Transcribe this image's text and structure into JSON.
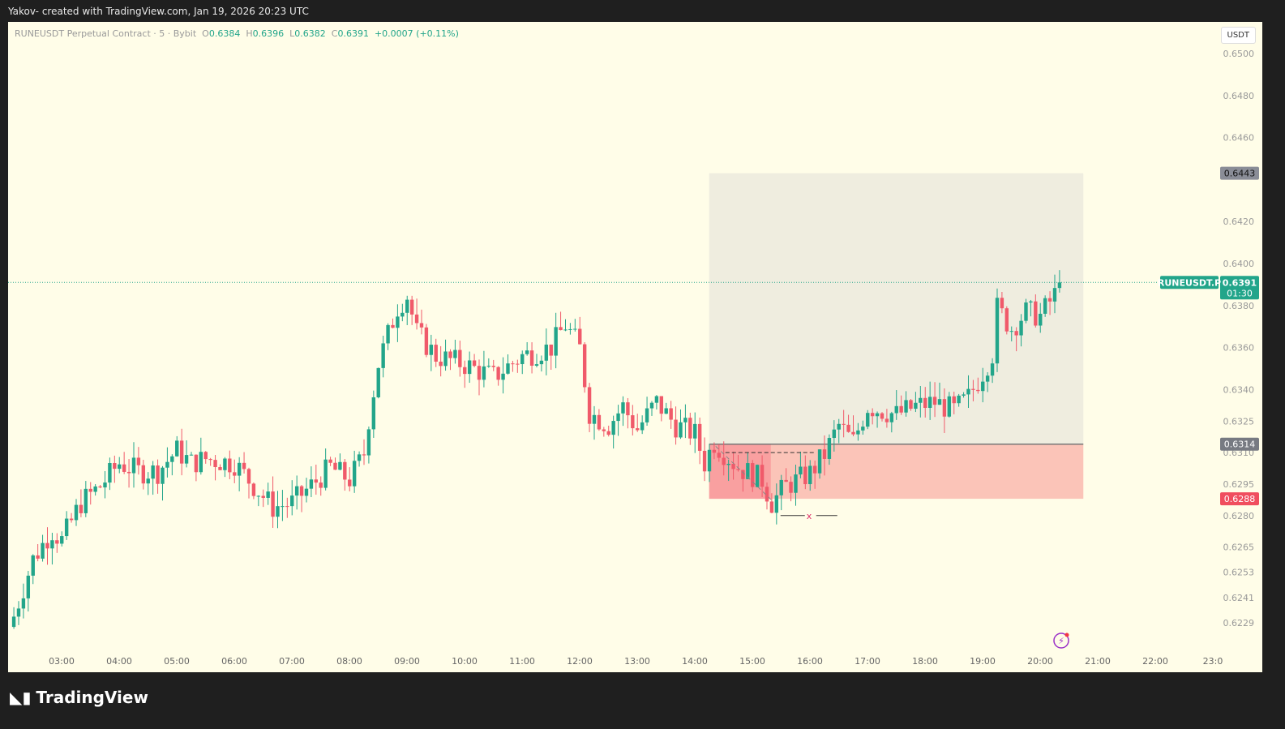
{
  "title": "Yakov- created with TradingView.com, Jan 19, 2026 20:23 UTC",
  "legend": {
    "symbol": "RUNEUSDT Perpetual Contract · 5 · Bybit",
    "o_label": "O",
    "o": "0.6384",
    "h_label": "H",
    "h": "0.6396",
    "l_label": "L",
    "l": "0.6382",
    "c_label": "C",
    "c": "0.6391",
    "change": "+0.0007 (+0.11%)"
  },
  "currency": "USDT",
  "logo": "TradingView",
  "colors": {
    "up": "#22a58a",
    "down": "#f05a6a",
    "bg": "#fffde8",
    "target": "#efeddf",
    "stop": "#fbc4b8"
  },
  "chart_data": {
    "type": "candlestick",
    "interval": "5",
    "price_ticks": [
      "0.6500",
      "0.6480",
      "0.6460",
      "0.6420",
      "0.6400",
      "0.6380",
      "0.6360",
      "0.6340",
      "0.6325",
      "0.6310",
      "0.6295",
      "0.6280",
      "0.6265",
      "0.6253",
      "0.6241",
      "0.6229"
    ],
    "time_ticks": [
      "03:00",
      "04:00",
      "05:00",
      "06:00",
      "07:00",
      "08:00",
      "09:00",
      "10:00",
      "11:00",
      "12:00",
      "13:00",
      "14:00",
      "15:00",
      "16:00",
      "17:00",
      "18:00",
      "19:00",
      "20:00",
      "21:00",
      "22:00",
      "23:0"
    ],
    "close_keypoints": [
      [
        2.17,
        0.6232
      ],
      [
        2.5,
        0.6259
      ],
      [
        2.83,
        0.6273
      ],
      [
        3.0,
        0.6268
      ],
      [
        3.33,
        0.6286
      ],
      [
        3.67,
        0.6294
      ],
      [
        4.0,
        0.6305
      ],
      [
        4.33,
        0.6301
      ],
      [
        4.67,
        0.6301
      ],
      [
        5.0,
        0.6311
      ],
      [
        5.25,
        0.6305
      ],
      [
        5.5,
        0.6307
      ],
      [
        6.0,
        0.6305
      ],
      [
        6.25,
        0.6297
      ],
      [
        6.67,
        0.6284
      ],
      [
        7.0,
        0.6286
      ],
      [
        7.33,
        0.6294
      ],
      [
        7.67,
        0.6303
      ],
      [
        8.0,
        0.6297
      ],
      [
        8.25,
        0.6309
      ],
      [
        8.33,
        0.6325
      ],
      [
        8.5,
        0.6352
      ],
      [
        8.83,
        0.6379
      ],
      [
        9.0,
        0.6385
      ],
      [
        9.17,
        0.6367
      ],
      [
        9.5,
        0.6356
      ],
      [
        10.0,
        0.6352
      ],
      [
        10.5,
        0.6346
      ],
      [
        11.0,
        0.6356
      ],
      [
        11.5,
        0.636
      ],
      [
        11.75,
        0.6371
      ],
      [
        12.0,
        0.636
      ],
      [
        12.17,
        0.6329
      ],
      [
        12.5,
        0.6323
      ],
      [
        12.75,
        0.6332
      ],
      [
        13.0,
        0.6321
      ],
      [
        13.33,
        0.6334
      ],
      [
        13.67,
        0.6323
      ],
      [
        14.0,
        0.6319
      ],
      [
        14.17,
        0.6305
      ],
      [
        14.33,
        0.6315
      ],
      [
        14.75,
        0.6303
      ],
      [
        15.17,
        0.6297
      ],
      [
        15.33,
        0.6286
      ],
      [
        15.58,
        0.6294
      ],
      [
        16.0,
        0.63
      ],
      [
        16.25,
        0.6309
      ],
      [
        16.5,
        0.6323
      ],
      [
        16.75,
        0.6315
      ],
      [
        17.0,
        0.6332
      ],
      [
        17.5,
        0.6328
      ],
      [
        17.83,
        0.6332
      ],
      [
        18.17,
        0.6334
      ],
      [
        18.5,
        0.633
      ],
      [
        18.75,
        0.6336
      ],
      [
        19.0,
        0.6348
      ],
      [
        19.17,
        0.6357
      ],
      [
        19.25,
        0.6379
      ],
      [
        19.5,
        0.6369
      ],
      [
        19.75,
        0.6377
      ],
      [
        20.0,
        0.6375
      ],
      [
        20.25,
        0.6385
      ],
      [
        20.35,
        0.6391
      ]
    ],
    "last_price": {
      "symbol": "RUNEUSDT.P",
      "price": "0.6391",
      "countdown": "01:30",
      "value": 0.6391
    },
    "position": {
      "target": "0.6443",
      "entry": "0.6314",
      "stop": "0.6288",
      "target_value": 0.6443,
      "entry_value": 0.6314,
      "stop_value": 0.6288,
      "start": 14.25,
      "end": 20.75,
      "marker": "x"
    }
  }
}
